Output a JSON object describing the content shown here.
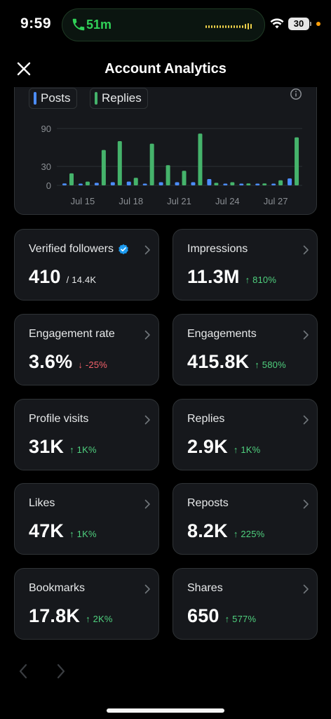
{
  "status": {
    "time": "9:59",
    "call_duration": "51m",
    "battery": "30"
  },
  "header": {
    "title": "Account Analytics",
    "close_icon": "close-icon"
  },
  "colors": {
    "posts": "#3b82f6",
    "replies": "#3fae6b",
    "positive": "#4fd07e",
    "negative": "#f4616a",
    "verified": "#1d9bf0"
  },
  "chart_data": {
    "type": "bar",
    "legend": [
      {
        "name": "Posts",
        "color": "#4c8dff"
      },
      {
        "name": "Replies",
        "color": "#45b36b"
      }
    ],
    "y_ticks": [
      "90",
      "30",
      "0"
    ],
    "ylim": [
      0,
      90
    ],
    "x_tick_labels": [
      "Jul 15",
      "Jul 18",
      "Jul 21",
      "Jul 24",
      "Jul 27"
    ],
    "categories": [
      "Jul 14",
      "Jul 15",
      "Jul 16",
      "Jul 17",
      "Jul 18",
      "Jul 19",
      "Jul 20",
      "Jul 21",
      "Jul 22",
      "Jul 23",
      "Jul 24",
      "Jul 25",
      "Jul 26",
      "Jul 27",
      "Jul 28"
    ],
    "series": [
      {
        "name": "Posts",
        "values": [
          3,
          2,
          4,
          5,
          6,
          2,
          5,
          5,
          5,
          10,
          2,
          2,
          2,
          2,
          11
        ]
      },
      {
        "name": "Replies",
        "values": [
          19,
          6,
          56,
          70,
          12,
          66,
          32,
          23,
          82,
          4,
          5,
          3,
          3,
          8,
          76
        ]
      }
    ],
    "grid": true
  },
  "metrics": [
    {
      "label": "Verified followers",
      "value": "410",
      "sub": "/ 14.4K",
      "trend": "neutral",
      "verified": true
    },
    {
      "label": "Impressions",
      "value": "11.3M",
      "sub": "↑ 810%",
      "trend": "up"
    },
    {
      "label": "Engagement rate",
      "value": "3.6%",
      "sub": "↓ -25%",
      "trend": "down"
    },
    {
      "label": "Engagements",
      "value": "415.8K",
      "sub": "↑ 580%",
      "trend": "up"
    },
    {
      "label": "Profile visits",
      "value": "31K",
      "sub": "↑ 1K%",
      "trend": "up"
    },
    {
      "label": "Replies",
      "value": "2.9K",
      "sub": "↑ 1K%",
      "trend": "up"
    },
    {
      "label": "Likes",
      "value": "47K",
      "sub": "↑ 1K%",
      "trend": "up"
    },
    {
      "label": "Reposts",
      "value": "8.2K",
      "sub": "↑ 225%",
      "trend": "up"
    },
    {
      "label": "Bookmarks",
      "value": "17.8K",
      "sub": "↑ 2K%",
      "trend": "up"
    },
    {
      "label": "Shares",
      "value": "650",
      "sub": "↑ 577%",
      "trend": "up"
    }
  ],
  "pager": {
    "prev_icon": "chevron-left-icon",
    "next_icon": "chevron-right-icon"
  }
}
